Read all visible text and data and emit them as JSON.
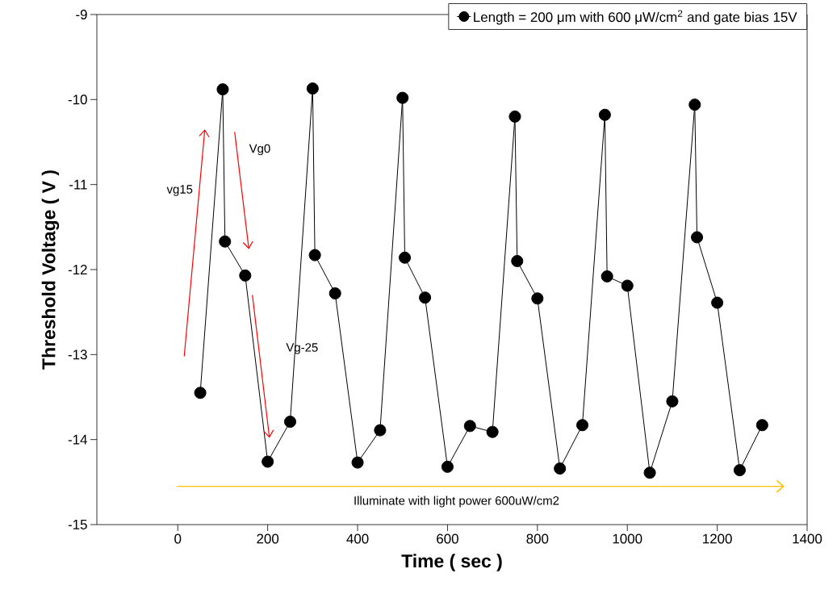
{
  "chart_data": {
    "type": "line",
    "xlabel": "Time ( sec )",
    "ylabel": "Threshold Voltage ( V )",
    "x": [
      50,
      100,
      105,
      150,
      200,
      250,
      300,
      305,
      350,
      400,
      450,
      500,
      505,
      550,
      600,
      650,
      700,
      750,
      755,
      800,
      850,
      900,
      950,
      955,
      1000,
      1050,
      1100,
      1150,
      1155,
      1200,
      1250,
      1300
    ],
    "series": [
      {
        "name": "Length = 200 μm with 600 μW/cm$^{2}$ and gate bias 15V",
        "color": "#000000",
        "values": [
          -13.45,
          -9.88,
          -11.67,
          -12.07,
          -14.26,
          -13.79,
          -9.87,
          -11.83,
          -12.28,
          -14.27,
          -13.89,
          -9.98,
          -11.86,
          -12.33,
          -14.32,
          -13.84,
          -13.91,
          -10.2,
          -11.9,
          -12.34,
          -14.34,
          -13.83,
          -10.18,
          -12.08,
          -12.19,
          -14.39,
          -13.55,
          -10.06,
          -11.62,
          -12.39,
          -14.36,
          -13.83
        ]
      }
    ],
    "xlim": [
      -180,
      1400
    ],
    "ylim": [
      -15,
      -9
    ],
    "xticks": [
      0,
      200,
      400,
      600,
      800,
      1000,
      1200,
      1400
    ],
    "yticks": [
      -15,
      -14,
      -13,
      -12,
      -11,
      -10,
      -9
    ],
    "marker": "circle",
    "line_style": "solid",
    "grid": false,
    "legend": "top right",
    "annotations": [
      "vg15",
      "Vg0",
      "Vg-25",
      "Illuminate with light power 600uW/cm2"
    ]
  }
}
